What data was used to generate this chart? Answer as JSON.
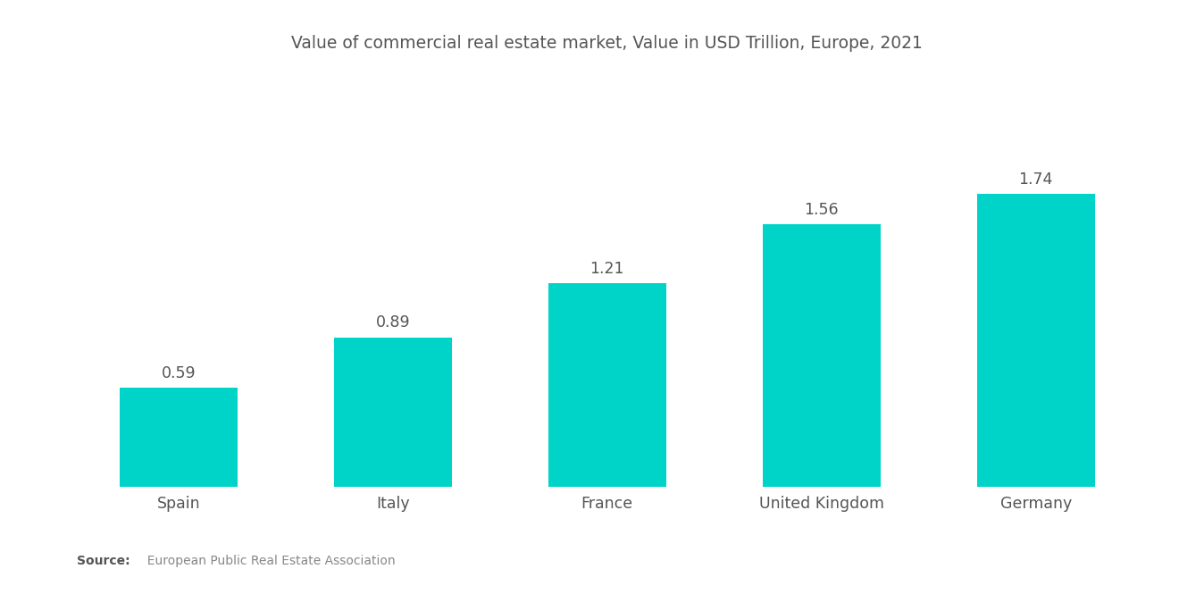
{
  "title": "Value of commercial real estate market, Value in USD Trillion, Europe, 2021",
  "categories": [
    "Spain",
    "Italy",
    "France",
    "United Kingdom",
    "Germany"
  ],
  "values": [
    0.59,
    0.89,
    1.21,
    1.56,
    1.74
  ],
  "bar_color": "#00D4C8",
  "background_color": "#ffffff",
  "title_fontsize": 13.5,
  "label_fontsize": 12.5,
  "value_fontsize": 12.5,
  "source_bold": "Source:",
  "source_rest": "  European Public Real Estate Association",
  "ylim": [
    0,
    2.4
  ],
  "title_color": "#555555",
  "axis_label_color": "#555555",
  "value_label_color": "#555555",
  "bar_width": 0.55
}
